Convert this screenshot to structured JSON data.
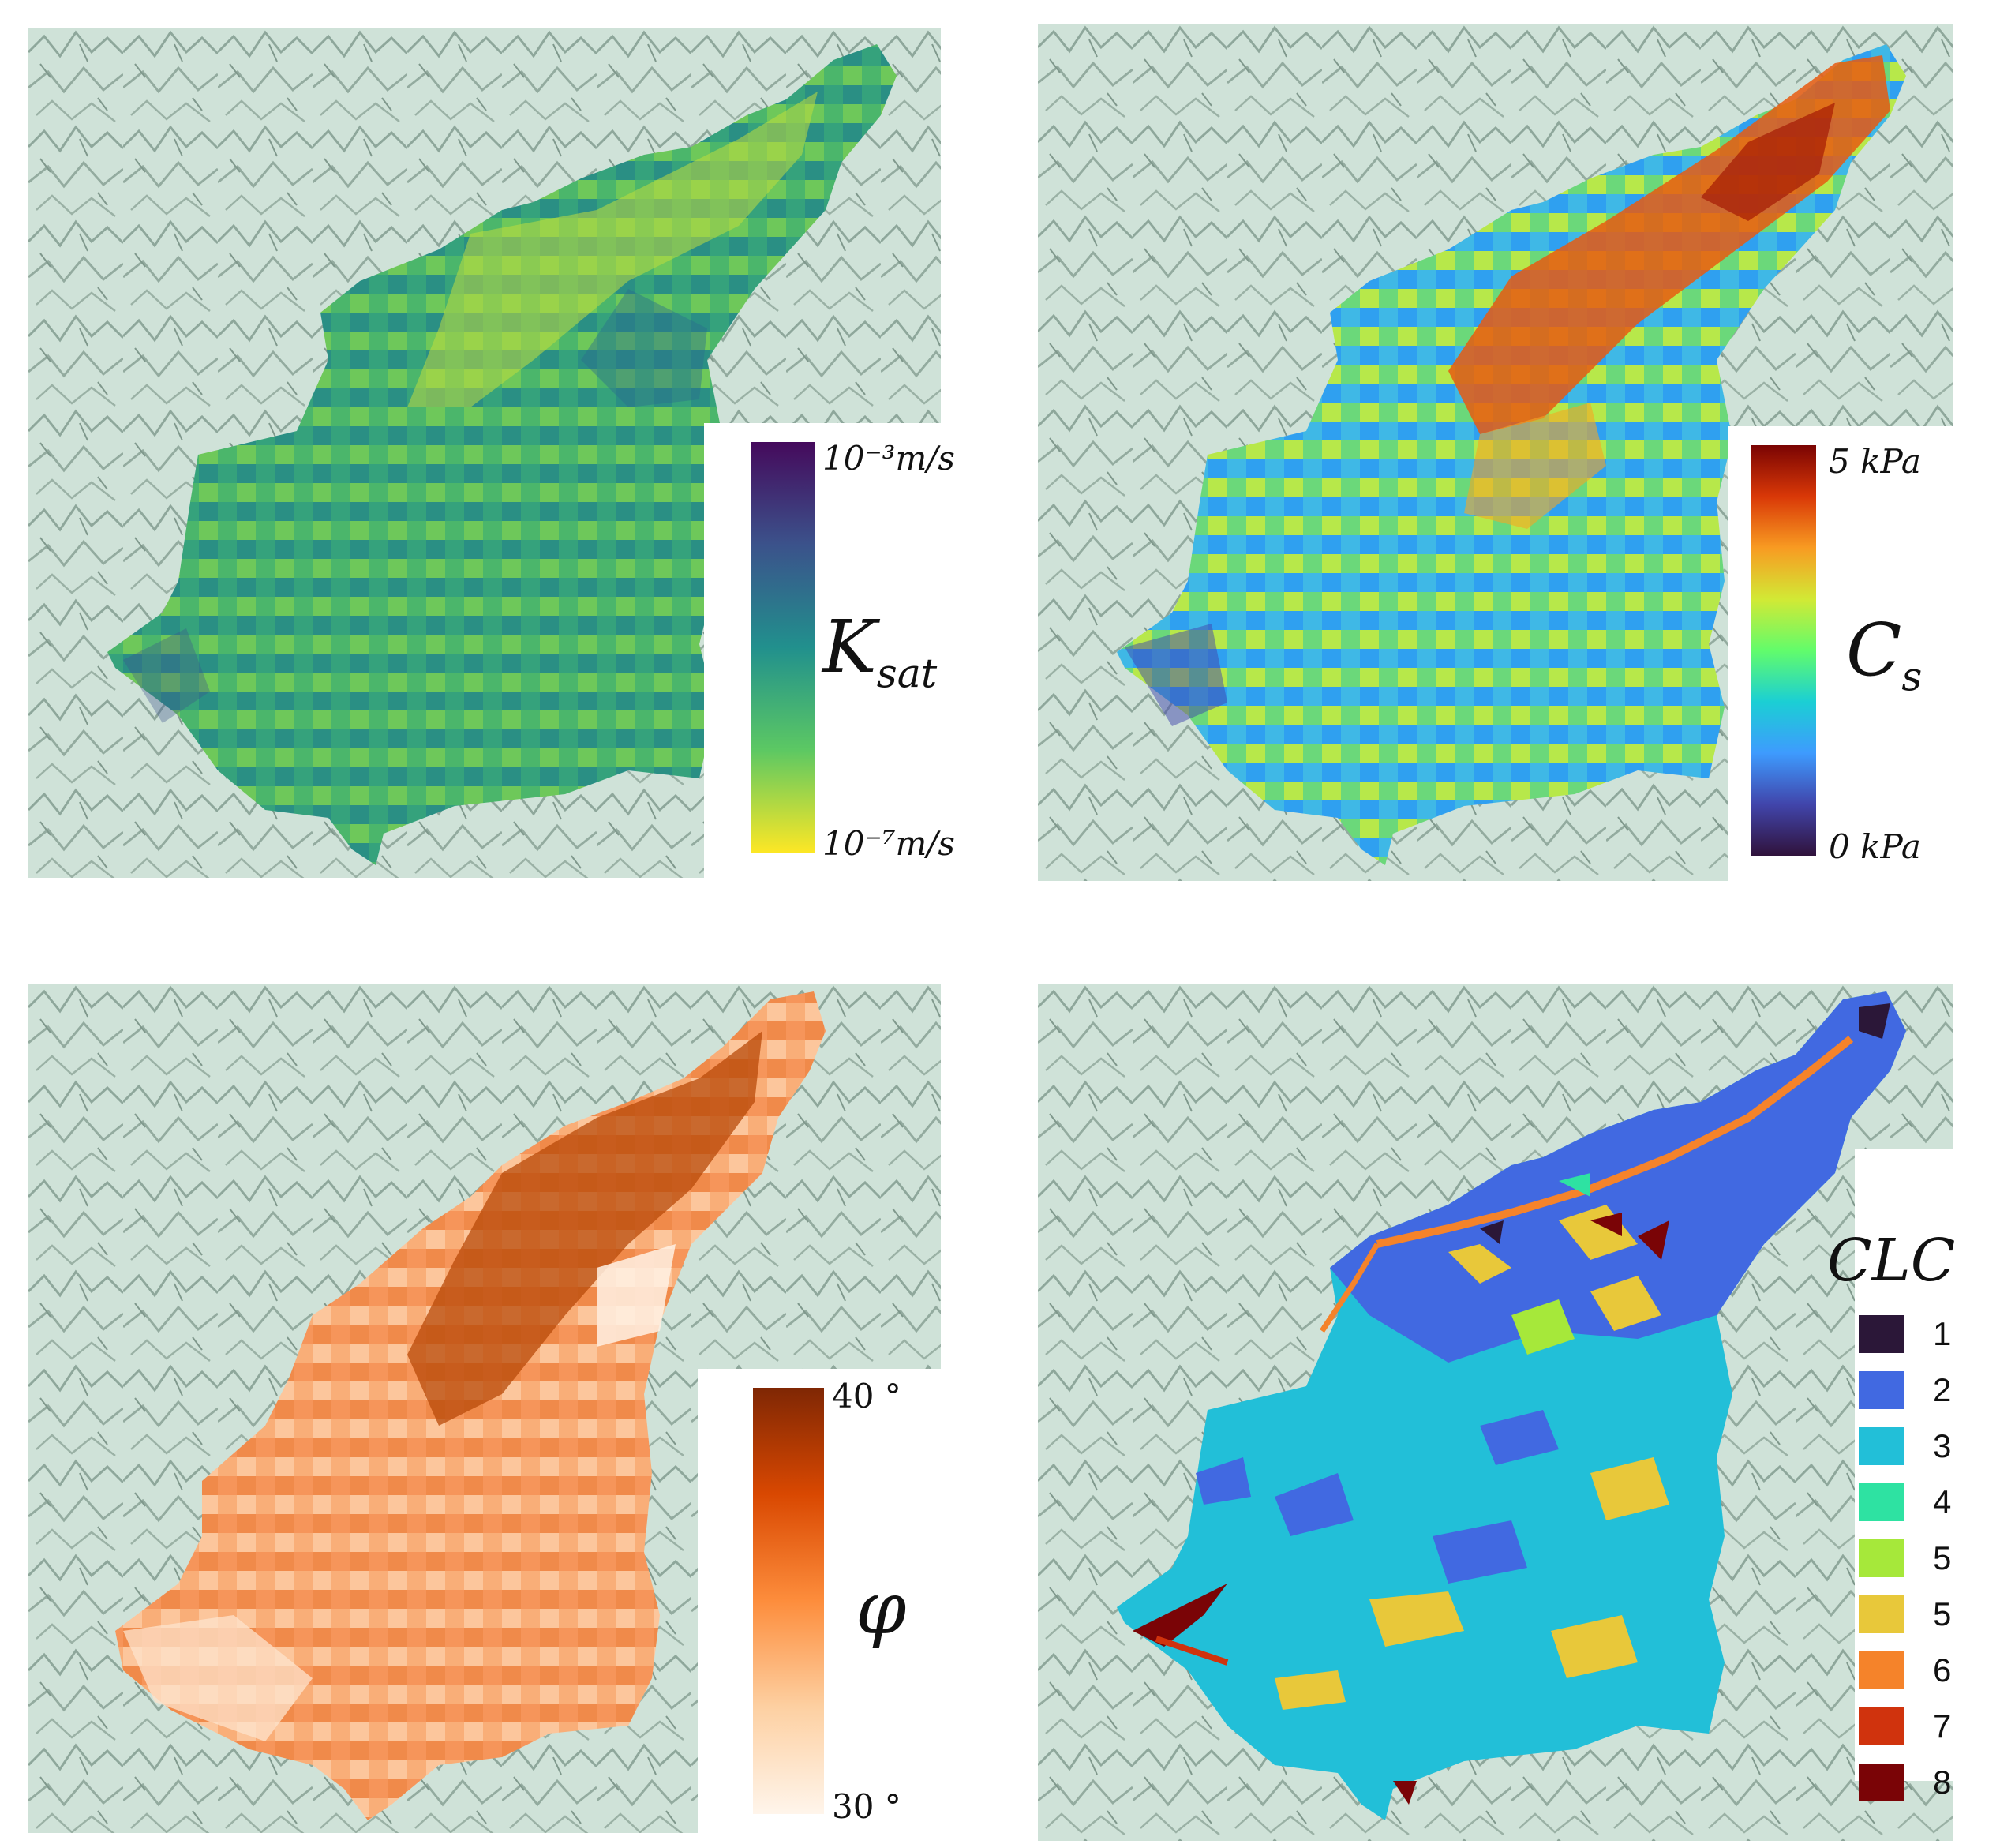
{
  "panels": {
    "ksat": {
      "symbol_main": "K",
      "symbol_sub": "sat",
      "max_label": "10⁻³m/s",
      "min_label": "10⁻⁷m/s",
      "colors": [
        "#450a5c",
        "#3b528b",
        "#21908d",
        "#5cc863",
        "#fde725"
      ]
    },
    "cs": {
      "symbol_main": "C",
      "symbol_sub": "s",
      "max_label": "5 kPa",
      "min_label": "0 kPa",
      "colors": [
        "#7a0403",
        "#d93807",
        "#f89b22",
        "#d2e935",
        "#62fc6b",
        "#1bcfd4",
        "#3e9bfe",
        "#4145ab",
        "#30123b"
      ]
    },
    "phi": {
      "symbol": "φ",
      "max_label": "40 °",
      "min_label": "30 °",
      "colors": [
        "#7f2704",
        "#d94801",
        "#fd8d3c",
        "#fdd0a2",
        "#fff5eb"
      ]
    },
    "clc": {
      "title": "CLC",
      "classes": [
        {
          "label": "1",
          "color": "#2b1738"
        },
        {
          "label": "2",
          "color": "#4169e1"
        },
        {
          "label": "3",
          "color": "#22bfd8"
        },
        {
          "label": "4",
          "color": "#2ee2a2"
        },
        {
          "label": "5",
          "color": "#a6e83a"
        },
        {
          "label": "5",
          "color": "#e8c83a"
        },
        {
          "label": "6",
          "color": "#f5832a"
        },
        {
          "label": "7",
          "color": "#d0330d"
        },
        {
          "label": "8",
          "color": "#7a0406"
        }
      ]
    }
  },
  "basemap": {
    "terrain_color": "#c9ddd3",
    "ridge_color": "#8fa59c"
  }
}
